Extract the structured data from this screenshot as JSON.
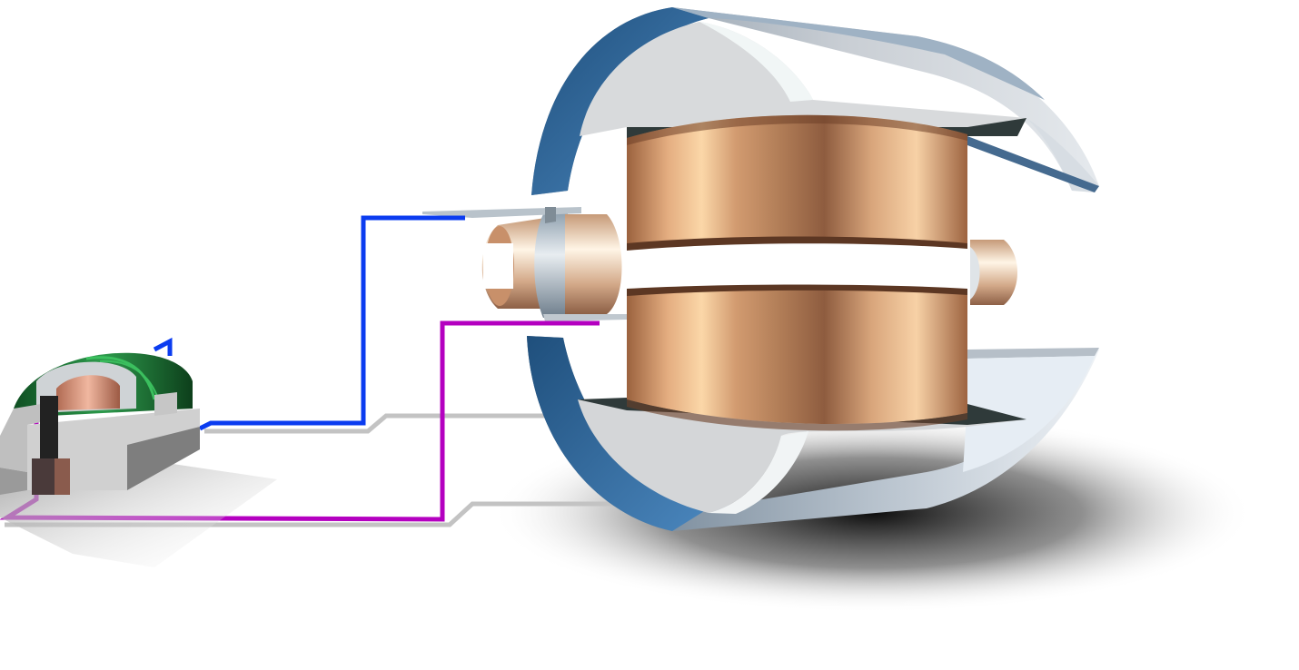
{
  "diagram": {
    "subject": "dc-motor-illustration",
    "components": [
      {
        "id": "magnet-stator",
        "icon": "magnet-housing-icon"
      },
      {
        "id": "armature-coil",
        "icon": "copper-coil-icon"
      },
      {
        "id": "commutator",
        "icon": "commutator-icon"
      },
      {
        "id": "brushes",
        "icon": "brush-icon"
      },
      {
        "id": "field-coil",
        "icon": "field-coil-icon"
      },
      {
        "id": "wire-positive",
        "icon": "wire-icon"
      },
      {
        "id": "wire-negative",
        "icon": "wire-icon"
      }
    ],
    "colors": {
      "wire_blue": "#0b3cf0",
      "wire_magenta": "#b400c0",
      "copper_dark": "#8a5a3a",
      "copper_light": "#f5cfa0",
      "steel_blue": "#3a6f9c",
      "steel_grey": "#c8cdd3",
      "coil_green": "#1f7a3a",
      "shadow_grey": "#bdbdbd"
    }
  }
}
